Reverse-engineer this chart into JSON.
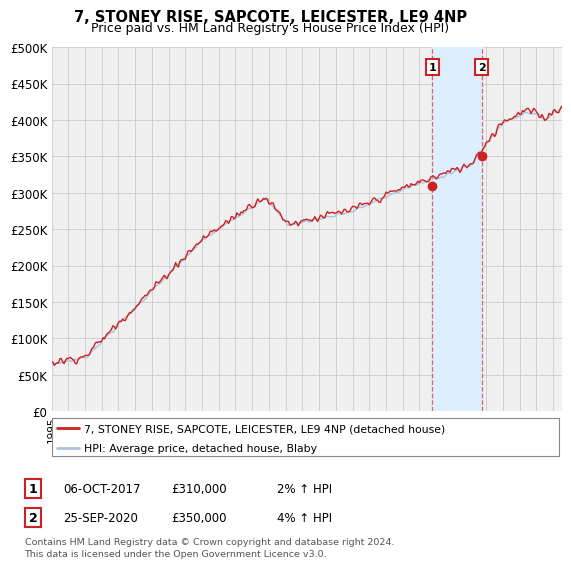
{
  "title": "7, STONEY RISE, SAPCOTE, LEICESTER, LE9 4NP",
  "subtitle": "Price paid vs. HM Land Registry's House Price Index (HPI)",
  "ylim": [
    0,
    500000
  ],
  "yticks": [
    0,
    50000,
    100000,
    150000,
    200000,
    250000,
    300000,
    350000,
    400000,
    450000,
    500000
  ],
  "ytick_labels": [
    "£0",
    "£50K",
    "£100K",
    "£150K",
    "£200K",
    "£250K",
    "£300K",
    "£350K",
    "£400K",
    "£450K",
    "£500K"
  ],
  "hpi_color": "#aac4e0",
  "price_color": "#cc2222",
  "sale1_x": 2017.78,
  "sale1_y": 310000,
  "sale2_x": 2020.73,
  "sale2_y": 350000,
  "annotation1_label": "1",
  "annotation1_date": "06-OCT-2017",
  "annotation1_price": "£310,000",
  "annotation1_hpi": "2% ↑ HPI",
  "annotation2_label": "2",
  "annotation2_date": "25-SEP-2020",
  "annotation2_price": "£350,000",
  "annotation2_hpi": "4% ↑ HPI",
  "legend_label1": "7, STONEY RISE, SAPCOTE, LEICESTER, LE9 4NP (detached house)",
  "legend_label2": "HPI: Average price, detached house, Blaby",
  "footnote": "Contains HM Land Registry data © Crown copyright and database right 2024.\nThis data is licensed under the Open Government Licence v3.0.",
  "xmin": 1995.0,
  "xmax": 2025.5,
  "background_color": "#ffffff",
  "plot_bg_color": "#f0f0f0",
  "vline_color": "#dd6666",
  "span_color": "#ddeeff",
  "grid_color": "#cccccc",
  "annot_box_color": "#cc2222"
}
